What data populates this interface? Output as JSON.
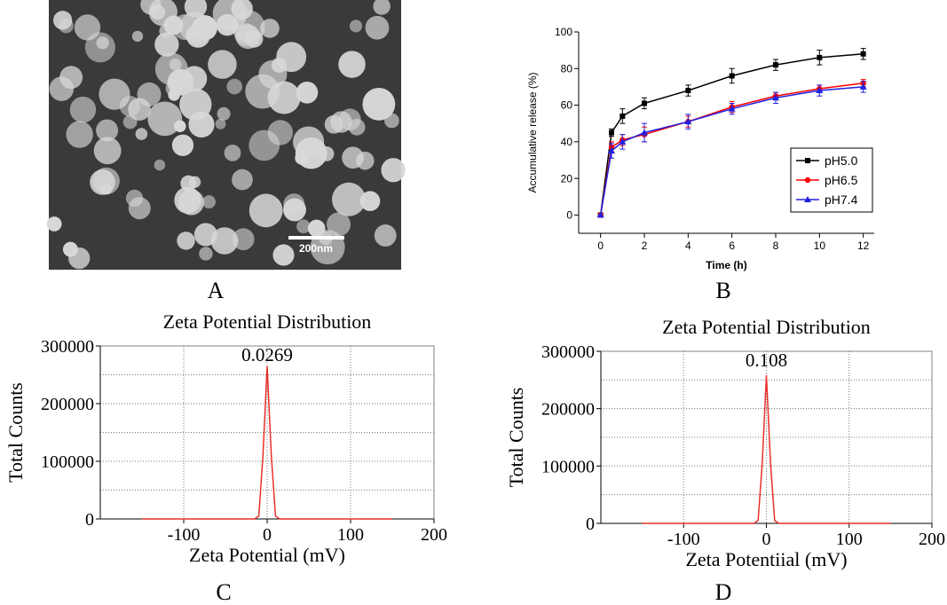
{
  "panel_labels": [
    "A",
    "B",
    "C",
    "D"
  ],
  "micrograph": {
    "scale_bar": "200nm"
  },
  "chart_data": [
    {
      "type": "line",
      "x_label": "Time (h)",
      "y_label": "Accumulative release (%)",
      "x": [
        0,
        0.5,
        1,
        2,
        4,
        6,
        8,
        10,
        12
      ],
      "xlim": [
        -1,
        12.5
      ],
      "xticks": [
        0,
        2,
        4,
        6,
        8,
        10,
        12
      ],
      "ylim": [
        -10,
        100
      ],
      "yticks": [
        0,
        20,
        40,
        60,
        80,
        100
      ],
      "legend": "lower right",
      "series": [
        {
          "name": "pH5.0",
          "color": "#000000",
          "marker": "square",
          "values": [
            0,
            45,
            54,
            61,
            68,
            76,
            82,
            86,
            88
          ],
          "errors": [
            0,
            2,
            4,
            3,
            3,
            4,
            3,
            4,
            3
          ]
        },
        {
          "name": "pH6.5",
          "color": "#ff0000",
          "marker": "circle",
          "values": [
            0,
            37,
            41,
            44,
            51,
            59,
            65,
            69,
            72
          ],
          "errors": [
            0,
            3,
            3,
            4,
            3,
            3,
            2,
            2,
            2
          ]
        },
        {
          "name": "pH7.4",
          "color": "#2020e0",
          "marker": "triangle",
          "values": [
            0,
            35,
            40,
            45,
            51,
            58,
            64,
            68,
            70
          ],
          "errors": [
            0,
            4,
            4,
            5,
            4,
            3,
            3,
            3,
            3
          ]
        }
      ]
    },
    {
      "type": "line",
      "title": "Zeta Potential Distribution",
      "x_label": "Zeta Potential (mV)",
      "y_label": "Total Counts",
      "peak_label": "0.0269",
      "x": [
        -150,
        -15,
        -10,
        -5,
        0,
        5,
        10,
        15,
        150
      ],
      "xlim": [
        -200,
        200
      ],
      "xticks": [
        -100,
        0,
        100,
        200
      ],
      "ylim": [
        0,
        300000
      ],
      "yticks": [
        0,
        100000,
        200000,
        300000
      ],
      "minor_yticks": [
        50000,
        150000,
        250000
      ],
      "grid": true,
      "series": [
        {
          "color": "#e8302a",
          "values": [
            0,
            0,
            5000,
            110000,
            265000,
            110000,
            5000,
            0,
            0
          ]
        }
      ]
    },
    {
      "type": "line",
      "title": "Zeta Potential Distribution",
      "x_label": "Zeta Potentiial (mV)",
      "y_label": "Total Counts",
      "peak_label": "0.108",
      "x": [
        -150,
        -15,
        -10,
        -5,
        0,
        5,
        10,
        15,
        150
      ],
      "xlim": [
        -200,
        200
      ],
      "xticks": [
        -100,
        0,
        100,
        200
      ],
      "ylim": [
        0,
        300000
      ],
      "yticks": [
        0,
        100000,
        200000,
        300000
      ],
      "minor_yticks": [
        50000,
        150000,
        250000
      ],
      "grid": true,
      "series": [
        {
          "color": "#e8302a",
          "values": [
            0,
            0,
            5000,
            105000,
            258000,
            105000,
            5000,
            0,
            0
          ]
        }
      ]
    }
  ]
}
